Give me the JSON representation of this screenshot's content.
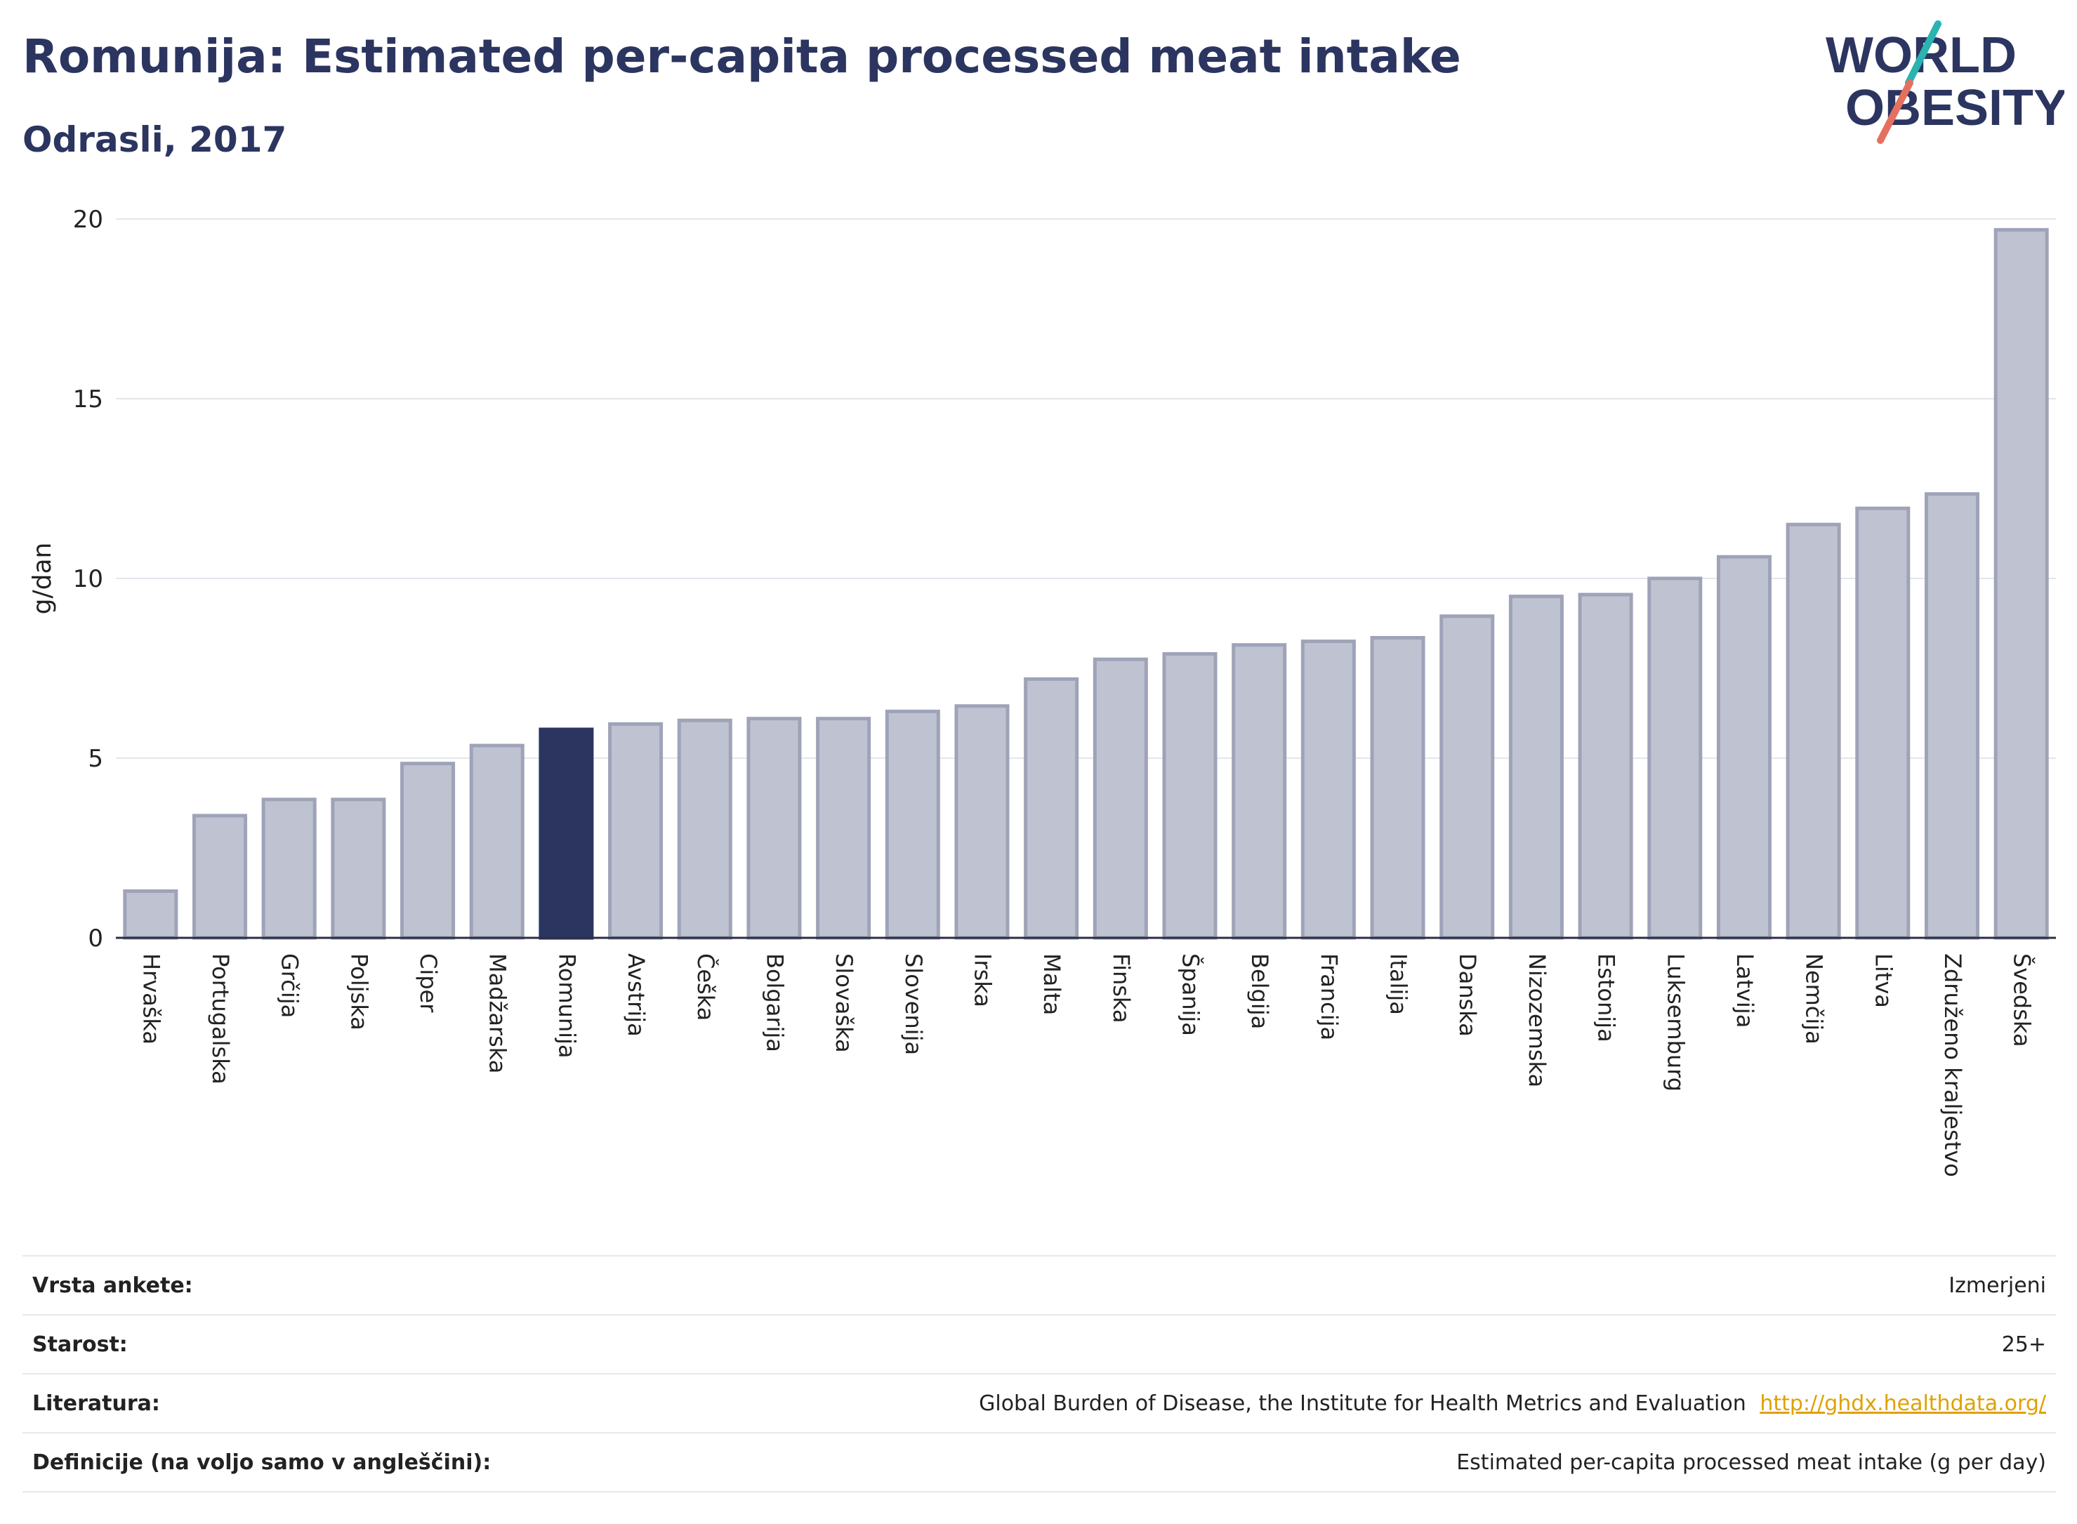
{
  "header": {
    "title": "Romunija: Estimated per-capita processed meat intake",
    "subtitle": "Odrasli, 2017"
  },
  "logo": {
    "line1": "WORLD",
    "line2": "OBESITY",
    "colors": {
      "text": "#2b3560",
      "slash_teal": "#2ab3b1",
      "slash_coral": "#e5705f"
    }
  },
  "colors": {
    "bar_default": "#bfc3d1",
    "bar_border": "#9ea3b8",
    "bar_highlight": "#2b3560"
  },
  "chart_data": {
    "type": "bar",
    "title": "Romunija: Estimated per-capita processed meat intake",
    "subtitle": "Odrasli, 2017",
    "xlabel": "",
    "ylabel": "g/dan",
    "ylim": [
      0,
      20
    ],
    "yticks": [
      0,
      5,
      10,
      15,
      20
    ],
    "grid": true,
    "highlight": "Romunija",
    "categories": [
      "Hrvaška",
      "Portugalska",
      "Grčija",
      "Poljska",
      "Ciper",
      "Madžarska",
      "Romunija",
      "Avstrija",
      "Češka",
      "Bolgarija",
      "Slovaška",
      "Slovenija",
      "Irska",
      "Malta",
      "Finska",
      "Španija",
      "Belgija",
      "Francija",
      "Italija",
      "Danska",
      "Nizozemska",
      "Estonija",
      "Luksemburg",
      "Latvija",
      "Nemčija",
      "Litva",
      "Združeno kraljestvo",
      "Švedska"
    ],
    "values": [
      1.3,
      3.4,
      3.85,
      3.85,
      4.85,
      5.35,
      5.8,
      5.95,
      6.05,
      6.1,
      6.1,
      6.3,
      6.45,
      7.2,
      7.75,
      7.9,
      8.15,
      8.25,
      8.35,
      8.95,
      9.5,
      9.55,
      10.0,
      10.6,
      11.5,
      11.95,
      12.35,
      19.7
    ]
  },
  "info": [
    {
      "key": "Vrsta ankete:",
      "value": "Izmerjeni"
    },
    {
      "key": "Starost:",
      "value": "25+"
    },
    {
      "key": "Literatura:",
      "value": "Global Burden of Disease, the Institute for Health Metrics and Evaluation",
      "link": "http://ghdx.healthdata.org/"
    },
    {
      "key": "Definicije (na voljo samo v angleščini):",
      "value": "Estimated per-capita processed meat intake (g per day)"
    }
  ]
}
